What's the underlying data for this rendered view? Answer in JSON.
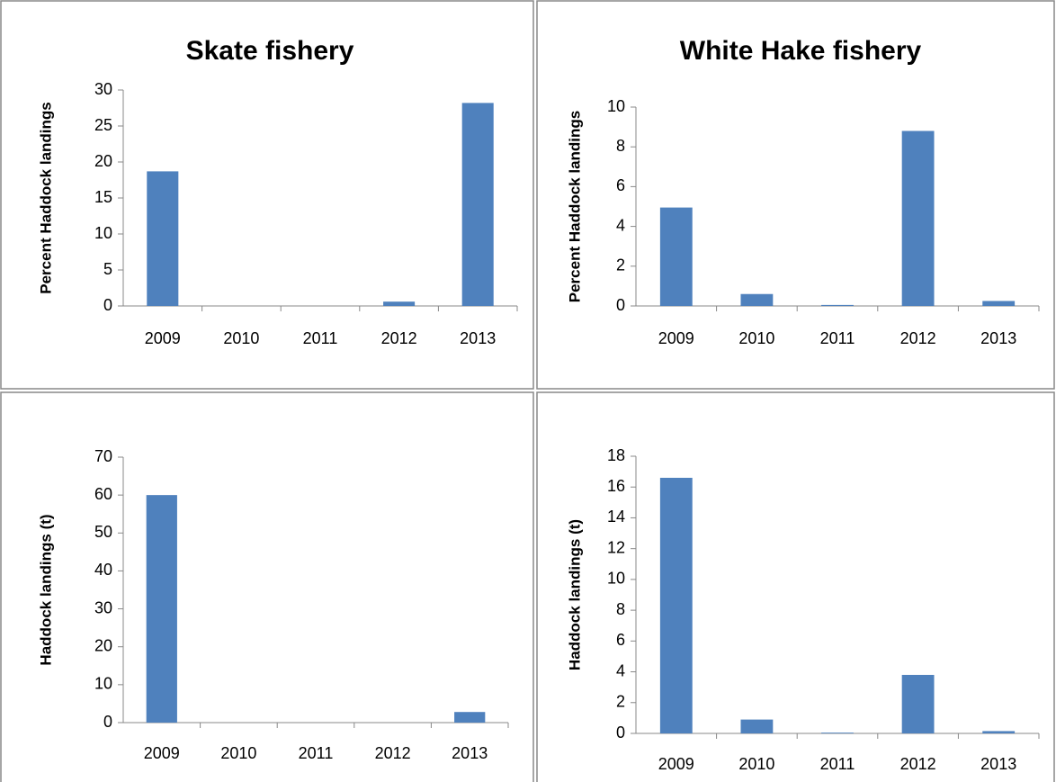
{
  "chart_data": [
    {
      "type": "bar",
      "title": "Skate fishery",
      "y_label": "Percent Haddock landings",
      "categories": [
        "2009",
        "2010",
        "2011",
        "2012",
        "2013"
      ],
      "values": [
        18.7,
        0,
        0,
        0.6,
        28.2
      ],
      "color": "#4f81bd",
      "ylim": [
        0,
        30
      ],
      "yticks": [
        0,
        5,
        10,
        15,
        20,
        25,
        30
      ]
    },
    {
      "type": "bar",
      "title": "White Hake fishery",
      "y_label": "Percent Haddock landings",
      "categories": [
        "2009",
        "2010",
        "2011",
        "2012",
        "2013"
      ],
      "values": [
        4.95,
        0.6,
        0.05,
        8.8,
        0.25
      ],
      "color": "#4f81bd",
      "ylim": [
        0,
        10
      ],
      "yticks": [
        0,
        2,
        4,
        6,
        8,
        10
      ]
    },
    {
      "type": "bar",
      "y_label": "Haddock landings (t)",
      "categories": [
        "2009",
        "2010",
        "2011",
        "2012",
        "2013"
      ],
      "values": [
        60,
        0,
        0,
        0,
        2.8
      ],
      "color": "#4f81bd",
      "ylim": [
        0,
        70
      ],
      "yticks": [
        0,
        10,
        20,
        30,
        40,
        50,
        60,
        70
      ]
    },
    {
      "type": "bar",
      "y_label": "Haddock landings (t)",
      "categories": [
        "2009",
        "2010",
        "2011",
        "2012",
        "2013"
      ],
      "values": [
        16.6,
        0.9,
        0.05,
        3.8,
        0.15
      ],
      "color": "#4f81bd",
      "ylim": [
        0,
        18
      ],
      "yticks": [
        0,
        2,
        4,
        6,
        8,
        10,
        12,
        14,
        16,
        18
      ]
    }
  ]
}
